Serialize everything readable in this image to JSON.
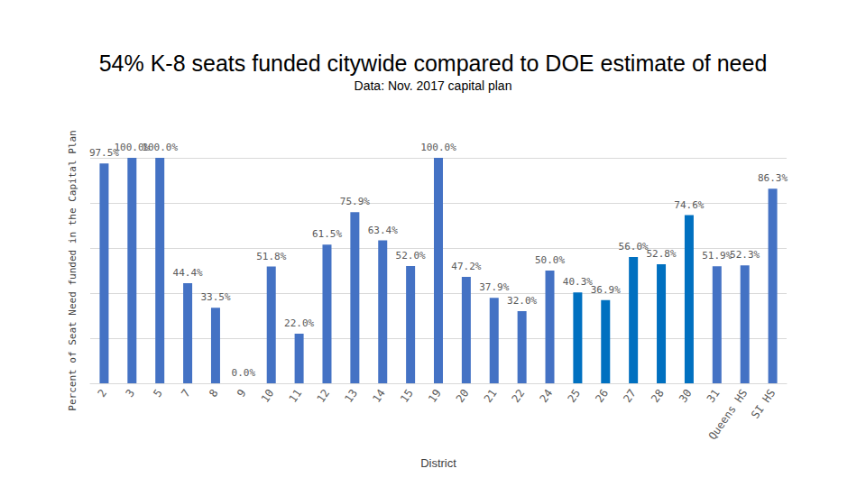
{
  "chart_data": {
    "type": "bar",
    "title": "54% K-8 seats funded citywide compared to DOE estimate of need",
    "subtitle": "Data: Nov. 2017 capital plan",
    "x_label": "District",
    "y_label": "Percent of Seat Need funded in the Capital Plan",
    "categories": [
      "2",
      "3",
      "5",
      "7",
      "8",
      "9",
      "10",
      "11",
      "12",
      "13",
      "14",
      "15",
      "19",
      "20",
      "21",
      "22",
      "24",
      "25",
      "26",
      "27",
      "28",
      "30",
      "31",
      "Queens HS",
      "SI HS"
    ],
    "values": [
      97.5,
      100.0,
      100.0,
      44.4,
      33.5,
      0.0,
      51.8,
      22.0,
      61.5,
      75.9,
      63.4,
      52.0,
      100.0,
      47.2,
      37.9,
      32.0,
      50.0,
      40.3,
      36.9,
      56.0,
      52.8,
      74.6,
      51.9,
      52.3,
      86.3
    ],
    "value_labels": [
      "97.5%",
      "100.0%",
      "100.0%",
      "44.4%",
      "33.5%",
      "0.0%",
      "51.8%",
      "22.0%",
      "61.5%",
      "75.9%",
      "63.4%",
      "52.0%",
      "100.0%",
      "47.2%",
      "37.9%",
      "32.0%",
      "50.0%",
      "40.3%",
      "36.9%",
      "56.0%",
      "52.8%",
      "74.6%",
      "51.9%",
      "52.3%",
      "86.3%"
    ],
    "colors": [
      "#4472c4",
      "#4472c4",
      "#4472c4",
      "#4472c4",
      "#4472c4",
      "#4472c4",
      "#4472c4",
      "#4472c4",
      "#4472c4",
      "#4472c4",
      "#4472c4",
      "#4472c4",
      "#4472c4",
      "#4472c4",
      "#4472c4",
      "#4472c4",
      "#4472c4",
      "#0070c0",
      "#0070c0",
      "#0070c0",
      "#0070c0",
      "#0070c0",
      "#4472c4",
      "#4472c4",
      "#4472c4"
    ],
    "ylim": [
      0,
      100
    ],
    "yticks": [
      0,
      20,
      40,
      60,
      80,
      100
    ],
    "grid": true,
    "data_labels": true,
    "tick_labels": "x"
  }
}
